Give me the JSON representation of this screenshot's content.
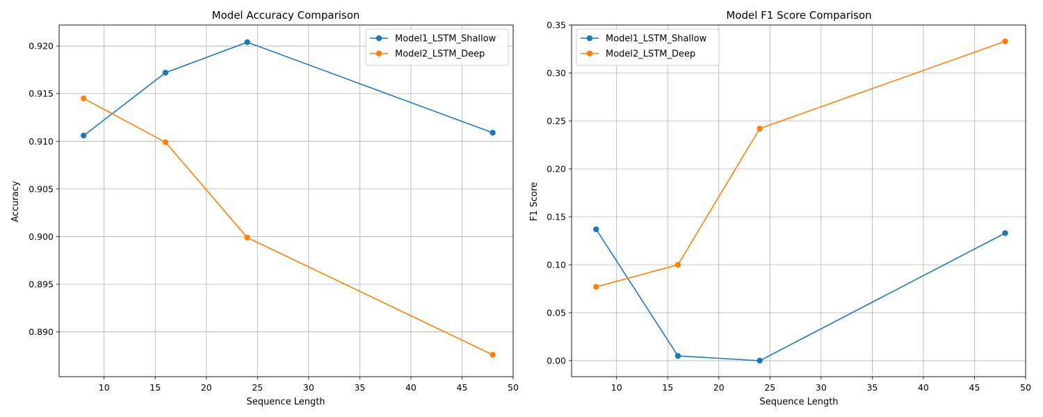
{
  "chart_data": [
    {
      "type": "line",
      "title": "Model Accuracy Comparison",
      "xlabel": "Sequence Length",
      "ylabel": "Accuracy",
      "xlim": [
        5.6,
        50
      ],
      "ylim": [
        0.8853,
        0.9222
      ],
      "xticks": [
        10,
        15,
        20,
        25,
        30,
        35,
        40,
        45,
        50
      ],
      "yticks": [
        0.89,
        0.895,
        0.9,
        0.905,
        0.91,
        0.915,
        0.92
      ],
      "ytick_decimals": 3,
      "grid": true,
      "legend_position": "top-right",
      "x": [
        8,
        16,
        24,
        48
      ],
      "series": [
        {
          "name": "Model1_LSTM_Shallow",
          "color": "#1f77b4",
          "values": [
            0.9106,
            0.9172,
            0.9204,
            0.9109
          ]
        },
        {
          "name": "Model2_LSTM_Deep",
          "color": "#ff7f0e",
          "values": [
            0.9145,
            0.9099,
            0.8999,
            0.8876
          ]
        }
      ]
    },
    {
      "type": "line",
      "title": "Model F1 Score Comparison",
      "xlabel": "Sequence Length",
      "ylabel": "F1 Score",
      "xlim": [
        5.6,
        50
      ],
      "ylim": [
        -0.0167,
        0.35
      ],
      "xticks": [
        10,
        15,
        20,
        25,
        30,
        35,
        40,
        45,
        50
      ],
      "yticks": [
        0.0,
        0.05,
        0.1,
        0.15,
        0.2,
        0.25,
        0.3,
        0.35
      ],
      "ytick_decimals": 2,
      "grid": true,
      "legend_position": "top-left",
      "x": [
        8,
        16,
        24,
        48
      ],
      "series": [
        {
          "name": "Model1_LSTM_Shallow",
          "color": "#1f77b4",
          "values": [
            0.137,
            0.005,
            0.0,
            0.133
          ]
        },
        {
          "name": "Model2_LSTM_Deep",
          "color": "#ff7f0e",
          "values": [
            0.077,
            0.1,
            0.242,
            0.333
          ]
        }
      ]
    }
  ]
}
